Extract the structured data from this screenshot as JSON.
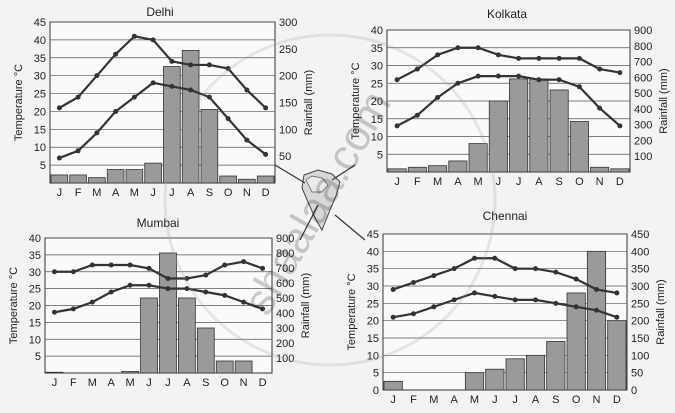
{
  "watermark": "shaalaa.com",
  "chart_data": [
    {
      "type": "bar",
      "title": "Delhi",
      "ylabel": "Temperature °C",
      "y2label": "Rainfall (mm)",
      "categories": [
        "J",
        "F",
        "M",
        "A",
        "M",
        "J",
        "J",
        "A",
        "S",
        "O",
        "N",
        "D"
      ],
      "ylim": [
        0,
        45
      ],
      "yticks": [
        5,
        10,
        15,
        20,
        25,
        30,
        35,
        40,
        45
      ],
      "y2lim": [
        0,
        300
      ],
      "y2ticks": [
        50,
        100,
        150,
        200,
        250,
        300
      ],
      "bar_series": {
        "name": "",
        "values": [
          15,
          15,
          10,
          25,
          25,
          37,
          217,
          247,
          137,
          13,
          7,
          13
        ]
      },
      "line_series": [
        {
          "name": "",
          "values": [
            21,
            24,
            30,
            36,
            41,
            40,
            34,
            33,
            33,
            32,
            26,
            21
          ]
        },
        {
          "name": "",
          "values": [
            7,
            9,
            14,
            20,
            24,
            28,
            27,
            26,
            24,
            18,
            12,
            8
          ]
        }
      ]
    },
    {
      "type": "bar",
      "title": "Kolkata",
      "ylabel": "Temperature °C",
      "y2label": "Rainfall (mm)",
      "categories": [
        "J",
        "F",
        "M",
        "A",
        "M",
        "J",
        "J",
        "A",
        "S",
        "O",
        "N",
        "D"
      ],
      "ylim": [
        0,
        40
      ],
      "yticks": [
        5,
        10,
        15,
        20,
        25,
        30,
        35,
        40
      ],
      "y2lim": [
        0,
        900
      ],
      "y2ticks": [
        100,
        200,
        300,
        400,
        500,
        600,
        700,
        800,
        900
      ],
      "bar_series": {
        "name": "",
        "values": [
          20,
          30,
          40,
          70,
          180,
          450,
          590,
          590,
          520,
          320,
          30,
          20
        ]
      },
      "line_series": [
        {
          "name": "",
          "values": [
            26,
            29,
            33,
            35,
            35,
            33,
            32,
            32,
            32,
            32,
            29,
            28
          ]
        },
        {
          "name": "",
          "values": [
            13,
            16,
            21,
            25,
            27,
            27,
            27,
            26,
            26,
            24,
            18,
            13
          ]
        }
      ]
    },
    {
      "type": "bar",
      "title": "Mumbai",
      "ylabel": "Temperature °C",
      "y2label": "Rainfall (mm)",
      "categories": [
        "J",
        "F",
        "M",
        "A",
        "M",
        "J",
        "J",
        "A",
        "S",
        "O",
        "N",
        "D"
      ],
      "ylim": [
        0,
        40
      ],
      "yticks": [
        5,
        10,
        15,
        20,
        25,
        30,
        35,
        40
      ],
      "y2lim": [
        0,
        900
      ],
      "y2ticks": [
        100,
        200,
        300,
        400,
        500,
        600,
        700,
        800,
        900
      ],
      "bar_series": {
        "name": "",
        "values": [
          5,
          0,
          0,
          0,
          10,
          500,
          800,
          500,
          300,
          80,
          80,
          0
        ]
      },
      "line_series": [
        {
          "name": "",
          "values": [
            30,
            30,
            32,
            32,
            32,
            31,
            28,
            28,
            29,
            32,
            33,
            31
          ]
        },
        {
          "name": "",
          "values": [
            18,
            19,
            21,
            24,
            26,
            26,
            25,
            25,
            24,
            23,
            21,
            19
          ]
        }
      ]
    },
    {
      "type": "bar",
      "title": "Chennai",
      "ylabel": "Temperature °C",
      "y2label": "Rainfall (mm)",
      "categories": [
        "J",
        "F",
        "M",
        "A",
        "M",
        "J",
        "J",
        "A",
        "S",
        "O",
        "N",
        "D"
      ],
      "ylim": [
        0,
        45
      ],
      "yticks": [
        0,
        5,
        10,
        15,
        20,
        25,
        30,
        35,
        40,
        45
      ],
      "y2lim": [
        0,
        450
      ],
      "y2ticks": [
        0,
        50,
        100,
        150,
        200,
        250,
        300,
        350,
        400,
        450
      ],
      "bar_series": {
        "name": "",
        "values": [
          25,
          0,
          0,
          0,
          50,
          60,
          90,
          100,
          140,
          280,
          400,
          200
        ]
      },
      "line_series": [
        {
          "name": "",
          "values": [
            29,
            31,
            33,
            35,
            38,
            38,
            35,
            35,
            34,
            32,
            29,
            28
          ]
        },
        {
          "name": "",
          "values": [
            21,
            22,
            24,
            26,
            28,
            27,
            26,
            26,
            25,
            24,
            23,
            21
          ]
        }
      ]
    }
  ]
}
